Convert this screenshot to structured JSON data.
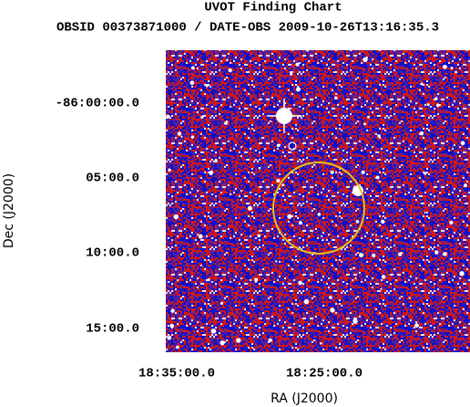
{
  "title": "UVOT Finding Chart",
  "subtitle": "OBSID 00373871000 / DATE-OBS 2009-10-26T13:16:35.3",
  "x_axis": {
    "label": "RA (J2000)",
    "ticks": [
      "18:35:00.0",
      "18:25:00.0"
    ]
  },
  "y_axis": {
    "label": "Dec (J2000)",
    "ticks": [
      "-86:00:00.0",
      "05:00.0",
      "10:00.0",
      "15:00.0"
    ]
  }
}
